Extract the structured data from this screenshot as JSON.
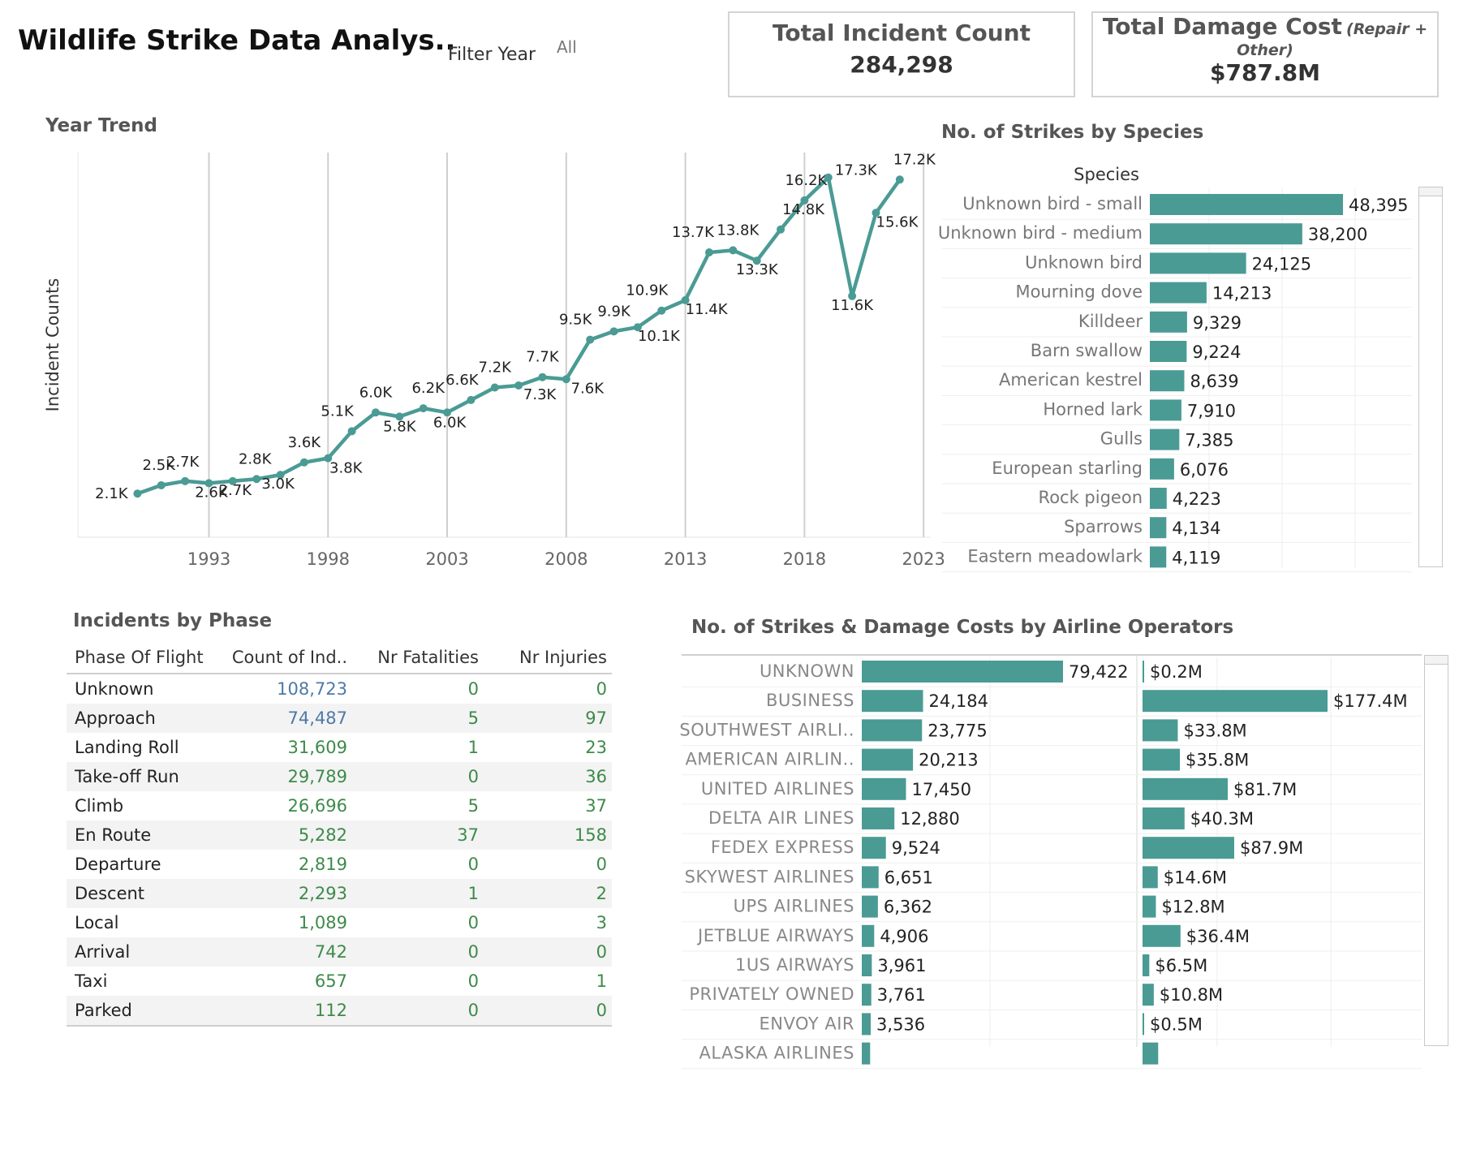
{
  "header": {
    "title": "Wildlife Strike Data Analys..",
    "filter_label": "Filter Year",
    "filter_value": "All"
  },
  "kpis": {
    "incident": {
      "title": "Total Incident Count",
      "value": "284,298"
    },
    "damage": {
      "title": "Total Damage Cost",
      "subtitle_a": "(Repair +",
      "subtitle_b": "Other)",
      "value": "$787.8M"
    }
  },
  "colors": {
    "accent": "#4a9b94",
    "grid": "#cfcfcf",
    "text": "#333333"
  },
  "chart_data": [
    {
      "id": "year_trend",
      "type": "line",
      "title": "Year Trend",
      "xlabel": "",
      "ylabel": "Incident Counts",
      "x_ticks": [
        1993,
        1998,
        2003,
        2008,
        2013,
        2018,
        2023
      ],
      "grid": "vertical",
      "x": [
        1990,
        1991,
        1992,
        1993,
        1994,
        1995,
        1996,
        1997,
        1998,
        1999,
        2000,
        2001,
        2002,
        2003,
        2004,
        2005,
        2006,
        2007,
        2008,
        2009,
        2010,
        2011,
        2012,
        2013,
        2014,
        2015,
        2016,
        2017,
        2018,
        2019,
        2020,
        2021,
        2022
      ],
      "values": [
        2.1,
        2.5,
        2.7,
        2.6,
        2.7,
        2.8,
        3.0,
        3.6,
        3.8,
        5.1,
        6.0,
        5.8,
        6.2,
        6.0,
        6.6,
        7.2,
        7.3,
        7.7,
        7.6,
        9.5,
        9.9,
        10.1,
        10.9,
        11.4,
        13.7,
        13.8,
        13.3,
        14.8,
        16.2,
        17.3,
        11.6,
        15.6,
        17.2
      ],
      "labels": [
        "2.1K",
        "2.5K",
        "2.7K",
        "2.6K",
        "2.7K",
        "2.8K",
        "3.0K",
        "3.6K",
        "3.8K",
        "5.1K",
        "6.0K",
        "5.8K",
        "6.2K",
        "6.0K",
        "6.6K",
        "7.2K",
        "7.3K",
        "7.7K",
        "7.6K",
        "9.5K",
        "9.9K",
        "10.1K",
        "10.9K",
        "11.4K",
        "13.7K",
        "13.8K",
        "13.3K",
        "14.8K",
        "16.2K",
        "17.3K",
        "11.6K",
        "15.6K",
        "17.2K"
      ],
      "units": "thousands",
      "ylim": [
        0,
        18.5
      ],
      "xlim": [
        1987.5,
        2023.3
      ]
    },
    {
      "id": "species",
      "type": "bar",
      "title": "No. of Strikes by Species",
      "column_header": "Species",
      "categories": [
        "Unknown bird - small",
        "Unknown bird - medium",
        "Unknown bird",
        "Mourning dove",
        "Killdeer",
        "Barn swallow",
        "American kestrel",
        "Horned lark",
        "Gulls",
        "European starling",
        "Rock pigeon",
        "Sparrows",
        "Eastern meadowlark"
      ],
      "values": [
        48395,
        38200,
        24125,
        14213,
        9329,
        9224,
        8639,
        7910,
        7385,
        6076,
        4223,
        4134,
        4119
      ],
      "labels": [
        "48,395",
        "38,200",
        "24,125",
        "14,213",
        "9,329",
        "9,224",
        "8,639",
        "7,910",
        "7,385",
        "6,076",
        "4,223",
        "4,134",
        "4,119"
      ]
    },
    {
      "id": "airlines",
      "type": "bar",
      "title": "No. of Strikes & Damage Costs by Airline Operators",
      "categories": [
        "UNKNOWN",
        "BUSINESS",
        "SOUTHWEST AIRLI..",
        "AMERICAN AIRLIN..",
        "UNITED AIRLINES",
        "DELTA AIR LINES",
        "FEDEX EXPRESS",
        "SKYWEST AIRLINES",
        "UPS AIRLINES",
        "JETBLUE AIRWAYS",
        "1US AIRWAYS",
        "PRIVATELY OWNED",
        "ENVOY AIR",
        "ALASKA AIRLINES"
      ],
      "series": [
        {
          "name": "Strikes",
          "values": [
            79422,
            24184,
            23775,
            20213,
            17450,
            12880,
            9524,
            6651,
            6362,
            4906,
            3961,
            3761,
            3536,
            3300
          ],
          "labels": [
            "79,422",
            "24,184",
            "23,775",
            "20,213",
            "17,450",
            "12,880",
            "9,524",
            "6,651",
            "6,362",
            "4,906",
            "3,961",
            "3,761",
            "3,536",
            ""
          ]
        },
        {
          "name": "Damage Cost",
          "values": [
            0.2,
            177.4,
            33.8,
            35.8,
            81.7,
            40.3,
            87.9,
            14.6,
            12.8,
            36.4,
            6.5,
            10.8,
            0.5,
            15.0
          ],
          "labels": [
            "$0.2M",
            "$177.4M",
            "$33.8M",
            "$35.8M",
            "$81.7M",
            "$40.3M",
            "$87.9M",
            "$14.6M",
            "$12.8M",
            "$36.4M",
            "$6.5M",
            "$10.8M",
            "$0.5M",
            ""
          ]
        }
      ]
    }
  ],
  "phase_table": {
    "title": "Incidents by Phase",
    "columns": [
      "Phase Of Flight",
      "Count of Ind..",
      "Nr Fatalities",
      "Nr Injuries"
    ],
    "rows": [
      {
        "phase": "Unknown",
        "count": "108,723",
        "fatalities": "0",
        "injuries": "0",
        "count_color": "#4e79a7"
      },
      {
        "phase": "Approach",
        "count": "74,487",
        "fatalities": "5",
        "injuries": "97",
        "count_color": "#4e79a7"
      },
      {
        "phase": "Landing Roll",
        "count": "31,609",
        "fatalities": "1",
        "injuries": "23",
        "count_color": "#3d8a4a"
      },
      {
        "phase": "Take-off Run",
        "count": "29,789",
        "fatalities": "0",
        "injuries": "36",
        "count_color": "#3d8a4a"
      },
      {
        "phase": "Climb",
        "count": "26,696",
        "fatalities": "5",
        "injuries": "37",
        "count_color": "#3d8a4a"
      },
      {
        "phase": "En Route",
        "count": "5,282",
        "fatalities": "37",
        "injuries": "158",
        "count_color": "#3d8a4a"
      },
      {
        "phase": "Departure",
        "count": "2,819",
        "fatalities": "0",
        "injuries": "0",
        "count_color": "#3d8a4a"
      },
      {
        "phase": "Descent",
        "count": "2,293",
        "fatalities": "1",
        "injuries": "2",
        "count_color": "#3d8a4a"
      },
      {
        "phase": "Local",
        "count": "1,089",
        "fatalities": "0",
        "injuries": "3",
        "count_color": "#3d8a4a"
      },
      {
        "phase": "Arrival",
        "count": "742",
        "fatalities": "0",
        "injuries": "0",
        "count_color": "#3d8a4a"
      },
      {
        "phase": "Taxi",
        "count": "657",
        "fatalities": "0",
        "injuries": "1",
        "count_color": "#3d8a4a"
      },
      {
        "phase": "Parked",
        "count": "112",
        "fatalities": "0",
        "injuries": "0",
        "count_color": "#3d8a4a"
      }
    ]
  }
}
